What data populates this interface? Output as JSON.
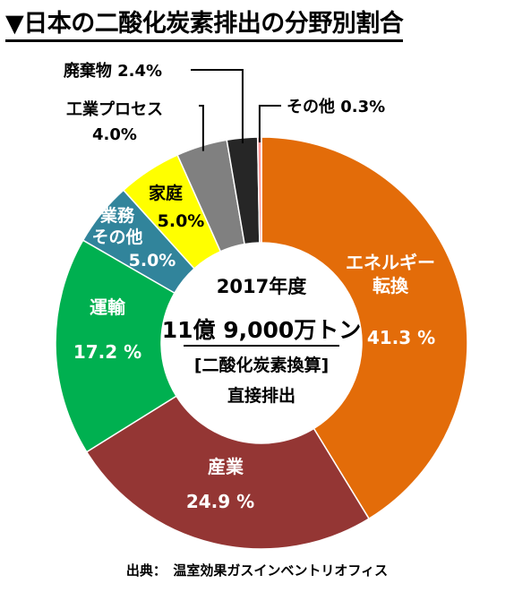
{
  "title": "▼日本の二酸化炭素排出の分野別割合",
  "source": "出典：　温室効果ガスインベントリオフィス",
  "center": {
    "year": "2017年度",
    "total": "11億 9,000万トン",
    "unit": "[二酸化炭素換算]",
    "note": "直接排出"
  },
  "chart_data": {
    "type": "pie",
    "title": "▼日本の二酸化炭素排出の分野別割合",
    "slices": [
      {
        "name": "エネルギー転換",
        "value": 41.3,
        "label_lines": [
          "エネルギー",
          "転換"
        ],
        "pct_text": "41.3 %",
        "color": "#e36c09"
      },
      {
        "name": "産業",
        "value": 24.9,
        "label_lines": [
          "産業"
        ],
        "pct_text": "24.9 %",
        "color": "#943634"
      },
      {
        "name": "運輸",
        "value": 17.2,
        "label_lines": [
          "運輸"
        ],
        "pct_text": "17.2 %",
        "color": "#00b050"
      },
      {
        "name": "業務その他",
        "value": 5.0,
        "label_lines": [
          "業務",
          "その他"
        ],
        "pct_text": "5.0%",
        "color": "#31849b"
      },
      {
        "name": "家庭",
        "value": 5.0,
        "label_lines": [
          "家庭"
        ],
        "pct_text": "5.0%",
        "color": "#ffff00"
      },
      {
        "name": "工業プロセス",
        "value": 4.0,
        "label_lines": [
          "工業プロセス",
          "4.0%"
        ],
        "pct_text": "",
        "color": "#808080"
      },
      {
        "name": "廃棄物",
        "value": 2.4,
        "label_lines": [
          "廃棄物 2.4%"
        ],
        "pct_text": "",
        "color": "#262626"
      },
      {
        "name": "その他",
        "value": 0.3,
        "label_lines": [
          "その他 0.3%"
        ],
        "pct_text": "",
        "color": "#ff9999"
      }
    ]
  }
}
